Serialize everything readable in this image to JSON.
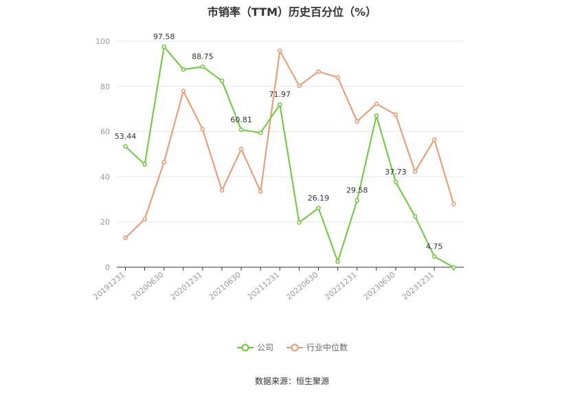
{
  "colors": {
    "company": "#66cc33",
    "industry": "#f0966a",
    "grid": "#e6e6e6",
    "axis": "#333333"
  },
  "chart_data": {
    "type": "line",
    "title": "市销率（TTM）历史百分位（%）",
    "ylim": [
      0,
      100
    ],
    "yticks": [
      0,
      20,
      40,
      60,
      80,
      100
    ],
    "grid": true,
    "legend_position": "bottom",
    "xtick_labels": [
      "20191231",
      "20200630",
      "20201231",
      "20210630",
      "20211231",
      "20220630",
      "20221231",
      "20230630",
      "20231231"
    ],
    "x": [
      "20191231",
      "20200331",
      "20200630",
      "20200930",
      "20201231",
      "20210331",
      "20210630",
      "20210930",
      "20211231",
      "20220331",
      "20220630",
      "20220930",
      "20221231",
      "20230331",
      "20230630",
      "20230930",
      "20231231",
      "20240331"
    ],
    "series": [
      {
        "name": "公司",
        "values": [
          53.44,
          45.5,
          97.58,
          87.5,
          88.75,
          82.5,
          60.81,
          59.5,
          71.97,
          19.8,
          26.19,
          2.5,
          29.58,
          67.0,
          37.73,
          22.5,
          4.75,
          0
        ],
        "labels": [
          "53.44",
          null,
          "97.58",
          null,
          "88.75",
          null,
          "60.81",
          null,
          "71.97",
          null,
          "26.19",
          null,
          "29.58",
          null,
          "37.73",
          null,
          "4.75",
          null
        ]
      },
      {
        "name": "行业中位数",
        "values": [
          13.0,
          21.3,
          46.5,
          78.0,
          61.0,
          34.0,
          52.3,
          33.5,
          95.8,
          80.3,
          86.6,
          84.0,
          64.5,
          72.3,
          67.5,
          42.3,
          56.5,
          28.0
        ]
      }
    ]
  },
  "footer": {
    "source": "数据来源：恒生聚源"
  }
}
